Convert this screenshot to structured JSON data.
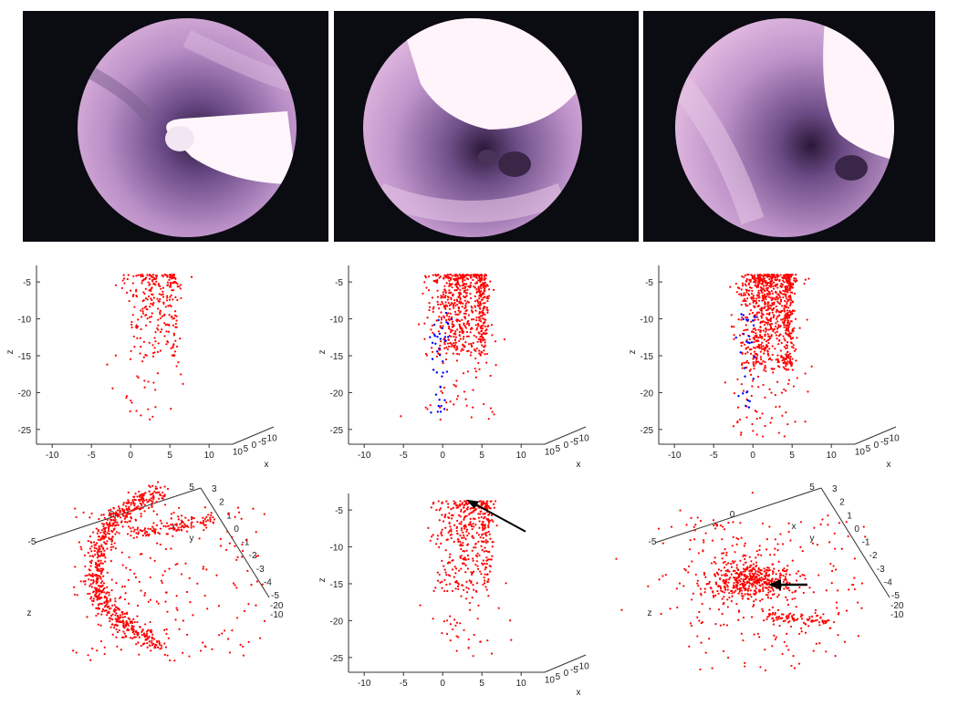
{
  "colors": {
    "points": "#ff0000",
    "highlight": "#0000ff",
    "arrow": "#000000",
    "axis": "#333333"
  },
  "chart_data": [
    {
      "id": "p1",
      "type": "scatter",
      "view": "front",
      "xlabel": "x",
      "zlabel": "z",
      "zlim": [
        -27,
        -3.5
      ],
      "xlim": [
        -12,
        13
      ],
      "z_ticks": [
        "-5",
        "-10",
        "-15",
        "-20",
        "-25"
      ],
      "x_ticks": [
        "-10",
        "-5",
        "0",
        "5",
        "10"
      ],
      "depth_ticks": [
        "10",
        "5",
        "0",
        "-5",
        "-10"
      ],
      "cloud": {
        "cx": 2.5,
        "sx": 1.6,
        "ztop": -4,
        "zcore_bottom": -15,
        "count": 260,
        "tail": 30,
        "blue": 0
      }
    },
    {
      "id": "p2",
      "type": "scatter",
      "view": "front",
      "xlabel": "x",
      "zlabel": "z",
      "zlim": [
        -27,
        -3.5
      ],
      "xlim": [
        -12,
        13
      ],
      "z_ticks": [
        "-5",
        "-10",
        "-15",
        "-20",
        "-25"
      ],
      "x_ticks": [
        "-10",
        "-5",
        "0",
        "5",
        "10"
      ],
      "depth_ticks": [
        "10",
        "5",
        "0",
        "-5",
        "-10"
      ],
      "cloud": {
        "cx": 2,
        "sx": 1.8,
        "ztop": -4,
        "zcore_bottom": -15,
        "count": 650,
        "tail": 45,
        "blue": 40
      }
    },
    {
      "id": "p3",
      "type": "scatter",
      "view": "front",
      "xlabel": "x",
      "zlabel": "z",
      "zlim": [
        -27,
        -3.5
      ],
      "xlim": [
        -12,
        13
      ],
      "z_ticks": [
        "-5",
        "-10",
        "-15",
        "-20",
        "-25"
      ],
      "x_ticks": [
        "-10",
        "-5",
        "0",
        "5",
        "10"
      ],
      "depth_ticks": [
        "10",
        "5",
        "0",
        "-5",
        "-10"
      ],
      "cloud": {
        "cx": 1.5,
        "sx": 1.7,
        "ztop": -4,
        "zcore_bottom": -17,
        "count": 900,
        "tail": 60,
        "blue": 30
      }
    },
    {
      "id": "p4",
      "type": "scatter",
      "view": "oblique",
      "xlabel": "x",
      "ylabel": "y",
      "zlabel": "z",
      "ticks_a": [
        "-5",
        "0",
        "5"
      ],
      "ticks_b": [
        "3",
        "2",
        "1",
        "0",
        "-1",
        "-2",
        "-3",
        "-4",
        "-5"
      ],
      "ticks_c": [
        "-20",
        "-10"
      ],
      "shape": "arc",
      "count": 900
    },
    {
      "id": "p5",
      "type": "scatter",
      "view": "front",
      "xlabel": "x",
      "zlabel": "z",
      "zlim": [
        -27,
        -3.5
      ],
      "xlim": [
        -12,
        13
      ],
      "z_ticks": [
        "-5",
        "-10",
        "-15",
        "-20",
        "-25"
      ],
      "x_ticks": [
        "-10",
        "-5",
        "0",
        "5",
        "10"
      ],
      "depth_ticks": [
        "10",
        "5",
        "0",
        "-5",
        "-10"
      ],
      "cloud": {
        "cx": 2.5,
        "sx": 1.8,
        "ztop": -3.8,
        "zcore_bottom": -16,
        "count": 420,
        "tail": 40,
        "blue": 0
      },
      "arrow": true
    },
    {
      "id": "p6",
      "type": "scatter",
      "view": "oblique",
      "xlabel": "x",
      "ylabel": "y",
      "zlabel": "z",
      "ticks_a": [
        "-5",
        "0",
        "5"
      ],
      "ticks_b": [
        "3",
        "2",
        "1",
        "0",
        "-1",
        "-2",
        "-3",
        "-4",
        "-5"
      ],
      "ticks_c": [
        "-20",
        "-10"
      ],
      "shape": "blob",
      "count": 700,
      "arrow": true
    }
  ]
}
